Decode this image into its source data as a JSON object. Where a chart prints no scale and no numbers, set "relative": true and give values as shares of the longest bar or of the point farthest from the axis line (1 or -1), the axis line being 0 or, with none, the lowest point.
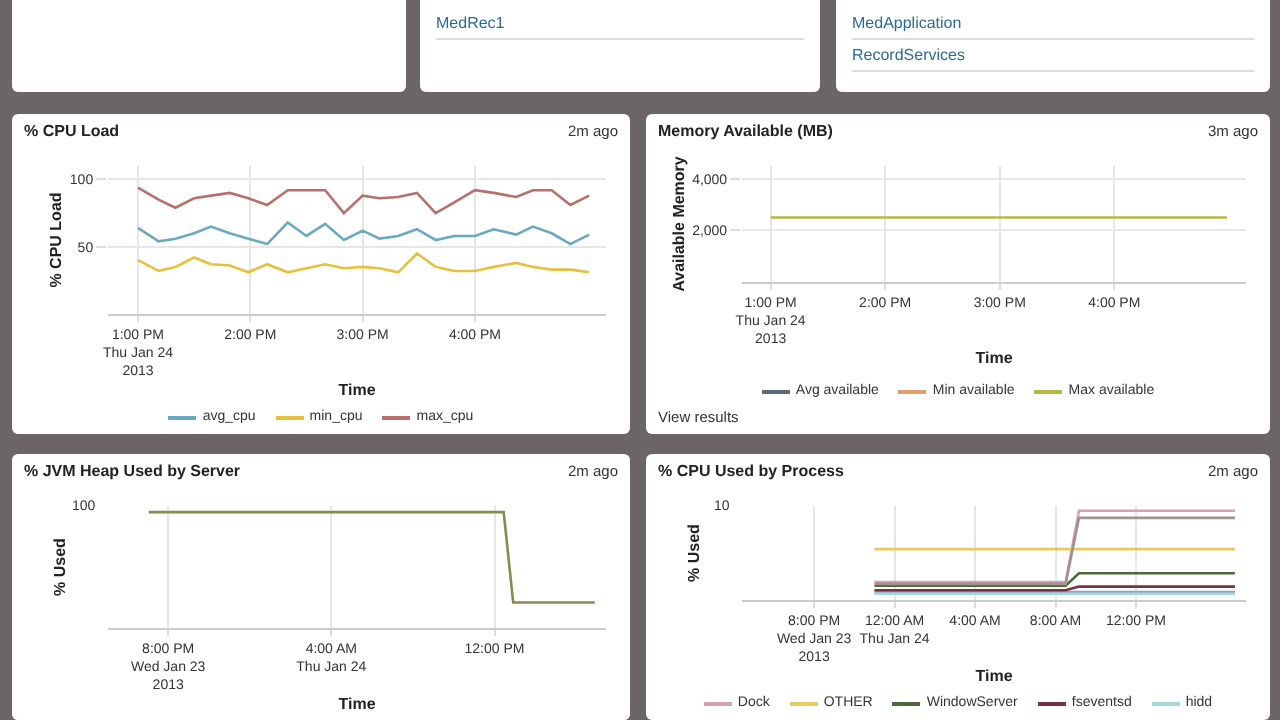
{
  "chart_data": [
    {
      "type": "other",
      "annotations": [
        "MedRec1"
      ]
    },
    {
      "type": "other",
      "annotations": [
        "MedApplication",
        "RecordServices"
      ]
    },
    {
      "type": "line",
      "title": "% CPU Load",
      "annotations": [
        "2m ago"
      ],
      "xlabel": "Time",
      "ylabel": "% CPU Load",
      "grid": true,
      "legend": "bottom",
      "x": [
        "2013-01-24T13:00",
        "2013-01-24T13:11",
        "2013-01-24T13:20",
        "2013-01-24T13:30",
        "2013-01-24T13:39",
        "2013-01-24T13:49",
        "2013-01-24T13:59",
        "2013-01-24T14:09",
        "2013-01-24T14:20",
        "2013-01-24T14:30",
        "2013-01-24T14:40",
        "2013-01-24T14:50",
        "2013-01-24T15:00",
        "2013-01-24T15:09",
        "2013-01-24T15:19",
        "2013-01-24T15:29",
        "2013-01-24T15:39",
        "2013-01-24T15:49",
        "2013-01-24T16:00",
        "2013-01-24T16:10",
        "2013-01-24T16:22",
        "2013-01-24T16:31",
        "2013-01-24T16:41",
        "2013-01-24T16:51",
        "2013-01-24T17:01"
      ],
      "xlim": [
        "2013-01-24T12:44",
        "2013-01-24T17:10"
      ],
      "xticks": [
        {
          "value": "2013-01-24T13:00",
          "label": "1:00 PM\nThu Jan 24\n2013"
        },
        {
          "value": "2013-01-24T14:00",
          "label": "2:00 PM"
        },
        {
          "value": "2013-01-24T15:00",
          "label": "3:00 PM"
        },
        {
          "value": "2013-01-24T16:00",
          "label": "4:00 PM"
        }
      ],
      "ylim": [
        0,
        110
      ],
      "yticks": [
        50,
        100
      ],
      "series": [
        {
          "name": "avg_cpu",
          "color": "#6aa9c0",
          "values": [
            64,
            54,
            56,
            60,
            65,
            60,
            56,
            52,
            68,
            58,
            67,
            55,
            62,
            56,
            58,
            63,
            55,
            58,
            58,
            63,
            59,
            65,
            60,
            52,
            59
          ]
        },
        {
          "name": "min_cpu",
          "color": "#e8c040",
          "values": [
            40,
            32,
            35,
            42,
            37,
            36,
            31,
            37,
            31,
            34,
            37,
            34,
            35,
            34,
            31,
            45,
            35,
            32,
            32,
            35,
            38,
            35,
            33,
            33,
            31
          ]
        },
        {
          "name": "max_cpu",
          "color": "#b8706a",
          "values": [
            94,
            85,
            79,
            86,
            88,
            90,
            86,
            81,
            92,
            92,
            92,
            75,
            88,
            86,
            87,
            90,
            75,
            83,
            92,
            90,
            87,
            92,
            92,
            81,
            88
          ]
        }
      ]
    },
    {
      "type": "line",
      "title": "Memory Available (MB)",
      "annotations": [
        "3m ago",
        "View results"
      ],
      "xlabel": "Time",
      "ylabel": "Available Memory",
      "grid": true,
      "legend": "bottom",
      "x": [
        "2013-01-24T13:00",
        "2013-01-24T16:59"
      ],
      "xlim": [
        "2013-01-24T12:45",
        "2013-01-24T17:09"
      ],
      "xticks": [
        {
          "value": "2013-01-24T13:00",
          "label": "1:00 PM\nThu Jan 24\n2013"
        },
        {
          "value": "2013-01-24T14:00",
          "label": "2:00 PM"
        },
        {
          "value": "2013-01-24T15:00",
          "label": "3:00 PM"
        },
        {
          "value": "2013-01-24T16:00",
          "label": "4:00 PM"
        }
      ],
      "ylim": [
        0,
        4500
      ],
      "yticks": [
        {
          "value": 2000,
          "label": "2,000"
        },
        {
          "value": 4000,
          "label": "4,000"
        }
      ],
      "series": [
        {
          "name": "Avg available",
          "color": "#5a6a7a",
          "values": [
            null,
            null
          ]
        },
        {
          "name": "Min available",
          "color": "#e0a070",
          "values": [
            null,
            null
          ]
        },
        {
          "name": "Max available",
          "color": "#b8b840",
          "values": [
            2500,
            2500
          ]
        }
      ]
    },
    {
      "type": "line",
      "title": "% JVM Heap Used by Server",
      "annotations": [
        "2m ago",
        "100"
      ],
      "xlabel": "Time",
      "ylabel": "% Used",
      "grid": "x",
      "relative": true,
      "x": [
        "2013-01-23T19:03",
        "2013-01-24T12:27",
        "2013-01-24T12:55",
        "2013-01-24T16:55"
      ],
      "xlim": [
        "2013-01-23T17:03",
        "2013-01-24T17:28"
      ],
      "xticks": [
        {
          "value": "2013-01-23T20:00",
          "label": "8:00 PM\nWed Jan 23\n2013"
        },
        {
          "value": "2013-01-24T04:00",
          "label": "4:00 AM\nThu Jan 24"
        },
        {
          "value": "2013-01-24T12:00",
          "label": "12:00 PM"
        }
      ],
      "series": [
        {
          "color": "#8a8a50",
          "values": [
            1,
            1,
            0.22,
            0.22
          ]
        }
      ]
    },
    {
      "type": "line",
      "title": "% CPU Used by Process",
      "annotations": [
        "2m ago",
        "10"
      ],
      "xlabel": "Time",
      "ylabel": "% Used",
      "grid": "x",
      "relative": true,
      "legend": "bottom",
      "x": [
        "2013-01-23T23:00",
        "2013-01-24T08:30",
        "2013-01-24T09:10",
        "2013-01-24T16:55"
      ],
      "xlim": [
        "2013-01-23T16:25",
        "2013-01-24T17:28"
      ],
      "xticks": [
        {
          "value": "2013-01-23T20:00",
          "label": "8:00 PM\nWed Jan 23\n2013"
        },
        {
          "value": "2013-01-24T00:00",
          "label": "12:00 AM\nThu Jan 24"
        },
        {
          "value": "2013-01-24T04:00",
          "label": "4:00 AM"
        },
        {
          "value": "2013-01-24T08:00",
          "label": "8:00 AM"
        },
        {
          "value": "2013-01-24T12:00",
          "label": "12:00 PM"
        }
      ],
      "series": [
        {
          "name": "Dock",
          "color": "#d8a0b0",
          "values": [
            0.2,
            0.2,
            1,
            1
          ]
        },
        {
          "color": "#8fa0c8",
          "values": [
            0.09,
            0.09,
            0.09,
            0.09
          ]
        },
        {
          "name": "OTHER",
          "color": "#e8c860",
          "values": [
            0.57,
            0.57,
            0.57,
            0.57
          ]
        },
        {
          "name": "WindowServer",
          "color": "#4a6a3a",
          "values": [
            0.16,
            0.16,
            0.3,
            0.3
          ]
        },
        {
          "name": "fseventsd",
          "color": "#7a3040",
          "values": [
            0.11,
            0.11,
            0.15,
            0.15
          ]
        },
        {
          "name": "hidd",
          "color": "#a8d8d8",
          "values": [
            0.07,
            0.07,
            0.07,
            0.07
          ]
        },
        {
          "color": "#a09090",
          "values": [
            0.18,
            0.18,
            0.92,
            0.92
          ]
        }
      ]
    }
  ]
}
